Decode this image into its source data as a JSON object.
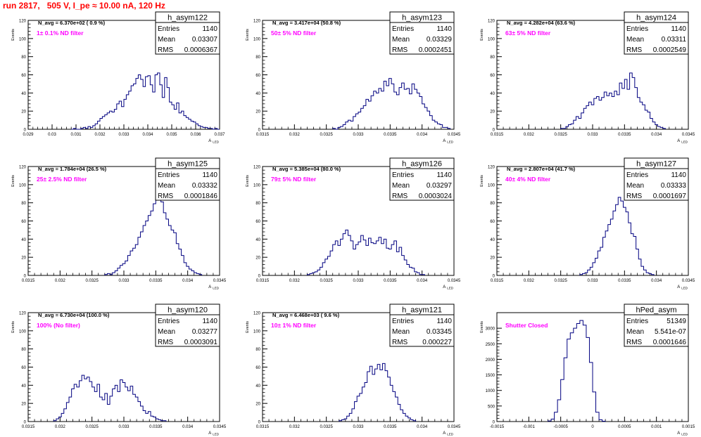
{
  "page": {
    "title": "run 2817,   505 V, I_pe ≈ 10.00 nA, 120 Hz"
  },
  "axis_label_x": "A",
  "axis_label_x_sub": "LED",
  "axis_label_y": "Events",
  "stats_labels": {
    "entries": "Entries",
    "mean": "Mean",
    "rms": "RMS"
  },
  "chart_data": [
    {
      "type": "bar",
      "name": "h_asym122",
      "navg": "N_avg = 6.370e+02  ( 0.9 %)",
      "filter": "1± 0.1% ND filter",
      "stats": {
        "entries": "1140",
        "mean": "0.03307",
        "rms": "0.0006367"
      },
      "xlim": [
        0.029,
        0.037
      ],
      "ylim": [
        0,
        120
      ],
      "xticks": [
        "0.029",
        "0.03",
        "0.031",
        "0.032",
        "0.033",
        "0.034",
        "0.035",
        "0.036",
        "0.037"
      ],
      "yticks": [
        "0",
        "20",
        "40",
        "60",
        "80",
        "100",
        "120"
      ],
      "x_start": 0.0308,
      "bin_width": 0.0001,
      "values": [
        0,
        1,
        0,
        0,
        1,
        2,
        1,
        3,
        2,
        4,
        6,
        9,
        12,
        14,
        16,
        18,
        20,
        19,
        22,
        28,
        31,
        25,
        33,
        38,
        42,
        48,
        50,
        56,
        60,
        55,
        47,
        58,
        59,
        49,
        41,
        60,
        62,
        49,
        35,
        57,
        46,
        30,
        27,
        22,
        29,
        18,
        20,
        15,
        13,
        11,
        9,
        8,
        6,
        4,
        3,
        2,
        2,
        1,
        1,
        0,
        1,
        0
      ]
    },
    {
      "type": "bar",
      "name": "h_asym123",
      "navg": "N_avg = 3.417e+04  (50.8 %)",
      "filter": "50± 5% ND filter",
      "stats": {
        "entries": "1140",
        "mean": "0.03329",
        "rms": "0.0002451"
      },
      "xlim": [
        0.0315,
        0.0345
      ],
      "ylim": [
        0,
        120
      ],
      "xticks": [
        "0.0315",
        "0.032",
        "0.0325",
        "0.033",
        "0.0335",
        "0.034",
        "0.0345"
      ],
      "yticks": [
        "0",
        "20",
        "40",
        "60",
        "80",
        "100",
        "120"
      ],
      "x_start": 0.0326,
      "bin_width": 4e-05,
      "values": [
        1,
        0,
        2,
        3,
        5,
        8,
        10,
        9,
        14,
        17,
        19,
        23,
        26,
        33,
        31,
        37,
        42,
        40,
        45,
        42,
        53,
        48,
        56,
        50,
        41,
        38,
        46,
        51,
        44,
        45,
        39,
        50,
        44,
        40,
        36,
        28,
        24,
        20,
        15,
        10,
        8,
        6,
        5,
        2,
        2,
        1
      ]
    },
    {
      "type": "bar",
      "name": "h_asym124",
      "navg": "N_avg = 4.282e+04  (63.6 %)",
      "filter": "63± 5% ND filter",
      "stats": {
        "entries": "1140",
        "mean": "0.03311",
        "rms": "0.0002549"
      },
      "xlim": [
        0.0315,
        0.0345
      ],
      "ylim": [
        0,
        120
      ],
      "xticks": [
        "0.0315",
        "0.032",
        "0.0325",
        "0.033",
        "0.0335",
        "0.034",
        "0.0345"
      ],
      "yticks": [
        "0",
        "20",
        "40",
        "60",
        "80",
        "100",
        "120"
      ],
      "x_start": 0.0325,
      "bin_width": 4e-05,
      "values": [
        1,
        1,
        3,
        5,
        6,
        10,
        14,
        12,
        18,
        23,
        26,
        30,
        27,
        34,
        36,
        32,
        35,
        41,
        37,
        40,
        36,
        42,
        38,
        51,
        45,
        55,
        44,
        62,
        57,
        46,
        35,
        30,
        27,
        21,
        19,
        12,
        8,
        5,
        3,
        2,
        1
      ]
    },
    {
      "type": "bar",
      "name": "h_asym125",
      "navg": "N_avg = 1.784e+04  (26.5 %)",
      "filter": "25± 2.5% ND filter",
      "stats": {
        "entries": "1140",
        "mean": "0.03332",
        "rms": "0.0001846"
      },
      "xlim": [
        0.0315,
        0.0345
      ],
      "ylim": [
        0,
        120
      ],
      "xticks": [
        "0.0315",
        "0.032",
        "0.0325",
        "0.033",
        "0.0335",
        "0.034",
        "0.0345"
      ],
      "yticks": [
        "0",
        "20",
        "40",
        "60",
        "80",
        "100",
        "120"
      ],
      "x_start": 0.0327,
      "bin_width": 4e-05,
      "values": [
        1,
        2,
        1,
        3,
        5,
        8,
        11,
        13,
        16,
        22,
        27,
        30,
        34,
        42,
        48,
        55,
        60,
        66,
        71,
        79,
        88,
        93,
        81,
        69,
        62,
        55,
        50,
        47,
        35,
        29,
        22,
        14,
        10,
        7,
        5,
        3,
        2,
        1
      ]
    },
    {
      "type": "bar",
      "name": "h_asym126",
      "navg": "N_avg = 5.385e+04  (80.0 %)",
      "filter": "79± 5% ND filter",
      "stats": {
        "entries": "1140",
        "mean": "0.03297",
        "rms": "0.0003024"
      },
      "xlim": [
        0.0315,
        0.0345
      ],
      "ylim": [
        0,
        120
      ],
      "xticks": [
        "0.0315",
        "0.032",
        "0.0325",
        "0.033",
        "0.0335",
        "0.034",
        "0.0345"
      ],
      "yticks": [
        "0",
        "20",
        "40",
        "60",
        "80",
        "100",
        "120"
      ],
      "x_start": 0.0322,
      "bin_width": 4e-05,
      "values": [
        1,
        2,
        3,
        4,
        6,
        9,
        14,
        18,
        21,
        27,
        34,
        38,
        33,
        40,
        46,
        50,
        44,
        38,
        29,
        34,
        37,
        44,
        39,
        33,
        41,
        36,
        35,
        38,
        42,
        35,
        40,
        30,
        29,
        34,
        38,
        26,
        31,
        22,
        17,
        12,
        9,
        8,
        4,
        3,
        1,
        1
      ]
    },
    {
      "type": "bar",
      "name": "h_asym127",
      "navg": "N_avg = 2.807e+04  (41.7 %)",
      "filter": "40± 4% ND filter",
      "stats": {
        "entries": "1140",
        "mean": "0.03333",
        "rms": "0.0001697"
      },
      "xlim": [
        0.0315,
        0.0345
      ],
      "ylim": [
        0,
        120
      ],
      "xticks": [
        "0.0315",
        "0.032",
        "0.0325",
        "0.033",
        "0.0335",
        "0.034",
        "0.0345"
      ],
      "yticks": [
        "0",
        "20",
        "40",
        "60",
        "80",
        "100",
        "120"
      ],
      "x_start": 0.0328,
      "bin_width": 4e-05,
      "values": [
        1,
        2,
        3,
        6,
        9,
        14,
        19,
        27,
        31,
        42,
        49,
        56,
        62,
        71,
        78,
        86,
        82,
        75,
        70,
        58,
        46,
        43,
        29,
        18,
        10,
        6,
        3,
        2,
        1
      ]
    },
    {
      "type": "bar",
      "name": "h_asym120",
      "navg": "N_avg = 6.730e+04  (100.0 %)",
      "filter": "100% (No filter)",
      "stats": {
        "entries": "1140",
        "mean": "0.03277",
        "rms": "0.0003091"
      },
      "xlim": [
        0.0315,
        0.0345
      ],
      "ylim": [
        0,
        120
      ],
      "xticks": [
        "0.0315",
        "0.032",
        "0.0325",
        "0.033",
        "0.0335",
        "0.034",
        "0.0345"
      ],
      "yticks": [
        "0",
        "20",
        "40",
        "60",
        "80",
        "100",
        "120"
      ],
      "x_start": 0.0319,
      "bin_width": 4e-05,
      "values": [
        1,
        3,
        5,
        9,
        14,
        21,
        27,
        36,
        41,
        38,
        45,
        51,
        47,
        49,
        44,
        38,
        33,
        41,
        27,
        24,
        31,
        19,
        28,
        36,
        40,
        33,
        46,
        43,
        38,
        34,
        39,
        30,
        27,
        22,
        17,
        12,
        9,
        11,
        6,
        5,
        3,
        2,
        1,
        1
      ]
    },
    {
      "type": "bar",
      "name": "h_asym121",
      "navg": "N_avg = 6.468e+03  ( 9.6 %)",
      "filter": "10± 1% ND filter",
      "stats": {
        "entries": "1140",
        "mean": "0.03345",
        "rms": "0.000227"
      },
      "xlim": [
        0.0315,
        0.0345
      ],
      "ylim": [
        0,
        120
      ],
      "xticks": [
        "0.0315",
        "0.032",
        "0.0325",
        "0.033",
        "0.0335",
        "0.034",
        "0.0345"
      ],
      "yticks": [
        "0",
        "20",
        "40",
        "60",
        "80",
        "100",
        "120"
      ],
      "x_start": 0.0327,
      "bin_width": 4e-05,
      "values": [
        1,
        2,
        3,
        6,
        9,
        14,
        22,
        28,
        31,
        38,
        43,
        55,
        61,
        52,
        58,
        63,
        57,
        64,
        56,
        49,
        40,
        33,
        27,
        19,
        13,
        9,
        6,
        4,
        2,
        1
      ]
    },
    {
      "type": "bar",
      "name": "hPed_asym",
      "navg": "",
      "filter": "Shutter Closed",
      "stats": {
        "entries": "51349",
        "mean": "5.541e-07",
        "rms": "0.0001646"
      },
      "xlim": [
        -0.0015,
        0.0015
      ],
      "ylim": [
        0,
        3500
      ],
      "xticks": [
        "-0.0015",
        "-0.001",
        "-0.0005",
        "0",
        "0.0005",
        "0.001",
        "0.0015"
      ],
      "yticks": [
        "0",
        "500",
        "1000",
        "1500",
        "2000",
        "2500",
        "3000"
      ],
      "x_start": -0.0007,
      "bin_width": 5e-05,
      "values": [
        20,
        80,
        300,
        700,
        1350,
        2050,
        2650,
        2850,
        3000,
        3150,
        3250,
        3100,
        2700,
        1900,
        950,
        300,
        60,
        10
      ]
    }
  ]
}
